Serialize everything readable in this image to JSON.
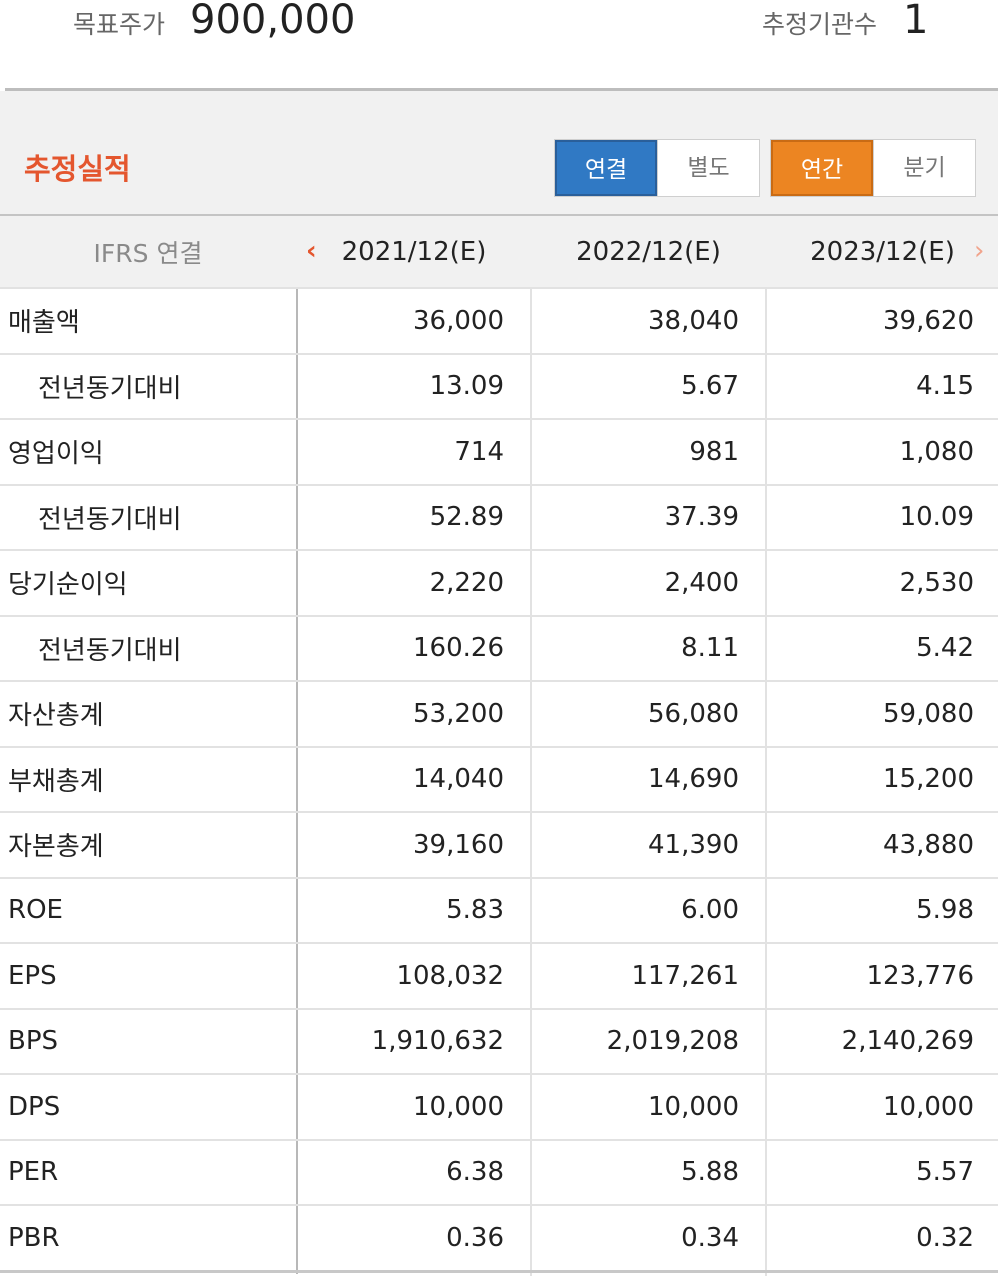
{
  "summary": {
    "target_price_label": "목표주가",
    "target_price_value": "900,000",
    "estimate_count_label": "추정기관수",
    "estimate_count_value": "1"
  },
  "section": {
    "title": "추정실적",
    "toggle_consolidation": [
      "연결",
      "별도"
    ],
    "toggle_consolidation_selected": "연결",
    "toggle_period": [
      "연간",
      "분기"
    ],
    "toggle_period_selected": "연간"
  },
  "table": {
    "header": [
      "IFRS 연결",
      "2021/12(E)",
      "2022/12(E)",
      "2023/12(E)"
    ],
    "rows": [
      {
        "label": "매출액",
        "sub": false,
        "values": [
          "36,000",
          "38,040",
          "39,620"
        ]
      },
      {
        "label": "전년동기대비",
        "sub": true,
        "values": [
          "13.09",
          "5.67",
          "4.15"
        ]
      },
      {
        "label": "영업이익",
        "sub": false,
        "values": [
          "714",
          "981",
          "1,080"
        ]
      },
      {
        "label": "전년동기대비",
        "sub": true,
        "values": [
          "52.89",
          "37.39",
          "10.09"
        ]
      },
      {
        "label": "당기순이익",
        "sub": false,
        "values": [
          "2,220",
          "2,400",
          "2,530"
        ]
      },
      {
        "label": "전년동기대비",
        "sub": true,
        "values": [
          "160.26",
          "8.11",
          "5.42"
        ]
      },
      {
        "label": "자산총계",
        "sub": false,
        "values": [
          "53,200",
          "56,080",
          "59,080"
        ]
      },
      {
        "label": "부채총계",
        "sub": false,
        "values": [
          "14,040",
          "14,690",
          "15,200"
        ]
      },
      {
        "label": "자본총계",
        "sub": false,
        "values": [
          "39,160",
          "41,390",
          "43,880"
        ]
      },
      {
        "label": "ROE",
        "sub": false,
        "values": [
          "5.83",
          "6.00",
          "5.98"
        ]
      },
      {
        "label": "EPS",
        "sub": false,
        "values": [
          "108,032",
          "117,261",
          "123,776"
        ]
      },
      {
        "label": "BPS",
        "sub": false,
        "values": [
          "1,910,632",
          "2,019,208",
          "2,140,269"
        ]
      },
      {
        "label": "DPS",
        "sub": false,
        "values": [
          "10,000",
          "10,000",
          "10,000"
        ]
      },
      {
        "label": "PER",
        "sub": false,
        "values": [
          "6.38",
          "5.88",
          "5.57"
        ]
      },
      {
        "label": "PBR",
        "sub": false,
        "values": [
          "0.36",
          "0.34",
          "0.32"
        ]
      }
    ]
  },
  "colors": {
    "accent_red": "#e4562e",
    "blue_selected": "#3079c4",
    "orange_selected": "#ec8522"
  }
}
